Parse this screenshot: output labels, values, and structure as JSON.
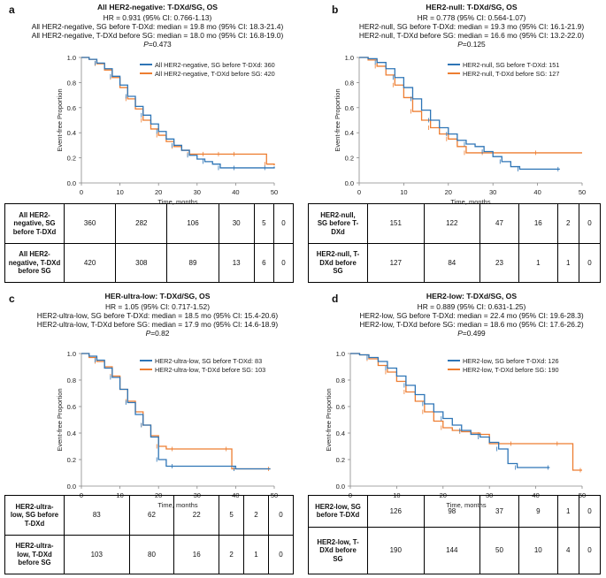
{
  "chart_data": [
    {
      "panel_label": "a",
      "type": "line",
      "title": "All HER2-negative: T-DXd/SG, OS",
      "stats": [
        "HR = 0.931 (95% CI: 0.766-1.13)",
        "All HER2-negative, SG before T-DXd: median = 19.8 mo (95% CI: 18.3-21.4)",
        "All HER2-negative, T-DXd before SG: median = 18.0 mo (95% CI: 16.8-19.0)"
      ],
      "p_label": "P",
      "p_value": "=0.473",
      "xlabel": "Time, months",
      "ylabel": "Event-free Proportion",
      "xlim": [
        0,
        50
      ],
      "ylim": [
        0,
        1
      ],
      "xticks": [
        "0",
        "10",
        "20",
        "30",
        "40",
        "50"
      ],
      "yticks": [
        "0.0",
        "0.2",
        "0.4",
        "0.6",
        "0.8",
        "1.0"
      ],
      "legend_position": "top-right",
      "series": [
        {
          "name": "All HER2-negative, SG before T-DXd: 360",
          "color": "#2E75B6",
          "x": [
            0,
            2,
            4,
            6,
            8,
            10,
            12,
            14,
            16,
            18,
            20,
            22,
            24,
            26,
            28,
            30,
            32,
            34,
            36,
            38,
            40,
            44,
            48,
            50
          ],
          "y": [
            1.0,
            0.985,
            0.955,
            0.91,
            0.85,
            0.78,
            0.69,
            0.61,
            0.54,
            0.47,
            0.41,
            0.35,
            0.3,
            0.26,
            0.22,
            0.19,
            0.17,
            0.15,
            0.12,
            0.12,
            0.12,
            0.12,
            0.12,
            0.13
          ]
        },
        {
          "name": "All HER2-negative, T-DXd before SG: 420",
          "color": "#ED7D31",
          "x": [
            0,
            2,
            4,
            6,
            8,
            10,
            12,
            14,
            16,
            18,
            20,
            22,
            24,
            26,
            28,
            30,
            32,
            34,
            36,
            38,
            40,
            44,
            48,
            50
          ],
          "y": [
            1.0,
            0.985,
            0.95,
            0.9,
            0.84,
            0.76,
            0.67,
            0.59,
            0.5,
            0.43,
            0.38,
            0.33,
            0.29,
            0.26,
            0.23,
            0.23,
            0.23,
            0.23,
            0.23,
            0.23,
            0.23,
            0.23,
            0.15,
            0.14
          ]
        }
      ],
      "risk_table": {
        "rows": [
          {
            "label_lines": [
              "All HER2-",
              "negative, SG",
              "before  T-DXd"
            ],
            "values": [
              "360",
              "282",
              "106",
              "30",
              "5",
              "0"
            ]
          },
          {
            "label_lines": [
              "All HER2-",
              "negative, T-DXd",
              "before SG"
            ],
            "values": [
              "420",
              "308",
              "89",
              "13",
              "6",
              "0"
            ]
          }
        ]
      }
    },
    {
      "panel_label": "b",
      "type": "line",
      "title": "HER2-null: T-DXd/SG, OS",
      "stats": [
        "HR = 0.778 (95% CI: 0.564-1.07)",
        "HER2-null, SG before T-DXd: median = 19.3 mo (95% CI: 16.1-21.9)",
        "HER2-null, T-DXd before SG: median = 16.6 mo (95% CI: 13.2-22.0)"
      ],
      "p_label": "P",
      "p_value": "=0.125",
      "xlabel": "Time, months",
      "ylabel": "Event-free Proportion",
      "xlim": [
        0,
        50
      ],
      "ylim": [
        0,
        1
      ],
      "xticks": [
        "0",
        "10",
        "20",
        "30",
        "40",
        "50"
      ],
      "yticks": [
        "0.0",
        "0.2",
        "0.4",
        "0.6",
        "0.8",
        "1.0"
      ],
      "legend_position": "top-right",
      "series": [
        {
          "name": "HER2-null, SG before T-DXd: 151",
          "color": "#2E75B6",
          "x": [
            0,
            2,
            4,
            6,
            8,
            10,
            12,
            14,
            16,
            18,
            20,
            22,
            24,
            26,
            28,
            30,
            32,
            34,
            36,
            40,
            45
          ],
          "y": [
            1.0,
            0.99,
            0.96,
            0.91,
            0.84,
            0.76,
            0.67,
            0.58,
            0.5,
            0.44,
            0.39,
            0.34,
            0.31,
            0.29,
            0.25,
            0.21,
            0.17,
            0.13,
            0.11,
            0.11,
            0.11
          ]
        },
        {
          "name": "HER2-null, T-DXd before SG: 127",
          "color": "#ED7D31",
          "x": [
            0,
            2,
            4,
            6,
            8,
            10,
            12,
            14,
            16,
            18,
            20,
            22,
            24,
            26,
            28,
            30,
            40,
            50
          ],
          "y": [
            1.0,
            0.98,
            0.93,
            0.86,
            0.78,
            0.68,
            0.57,
            0.5,
            0.44,
            0.39,
            0.35,
            0.29,
            0.24,
            0.24,
            0.24,
            0.24,
            0.24,
            0.24
          ]
        }
      ],
      "risk_table": {
        "rows": [
          {
            "label_lines": [
              "HER2-null,",
              "SG before  T-",
              "DXd"
            ],
            "values": [
              "151",
              "122",
              "47",
              "16",
              "2",
              "0"
            ]
          },
          {
            "label_lines": [
              "HER2-null, T-",
              "DXd before",
              "SG"
            ],
            "values": [
              "127",
              "84",
              "23",
              "1",
              "1",
              "0"
            ]
          }
        ]
      }
    },
    {
      "panel_label": "c",
      "type": "line",
      "title": "HER-ultra-low: T-DXd/SG, OS",
      "stats": [
        "HR = 1.05 (95% CI: 0.717-1.52)",
        "HER2-ultra-low, SG before T-DXd: median = 18.5 mo (95% CI: 15.4-20.6)",
        "HER2-ultra-low, T-DXd before SG: median = 17.9 mo (95% CI: 14.6-18.9)"
      ],
      "p_label": "P",
      "p_value": "=0.82",
      "xlabel": "Time, months",
      "ylabel": "Event-free Proportion",
      "xlim": [
        0,
        50
      ],
      "ylim": [
        0,
        1
      ],
      "xticks": [
        "0",
        "10",
        "20",
        "30",
        "40",
        "50"
      ],
      "yticks": [
        "0.0",
        "0.2",
        "0.4",
        "0.6",
        "0.8",
        "1.0"
      ],
      "legend_position": "top-right",
      "series": [
        {
          "name": "HER2-ultra-low, SG before T-DXd: 83",
          "color": "#2E75B6",
          "x": [
            0,
            2,
            4,
            6,
            8,
            10,
            12,
            14,
            16,
            18,
            20,
            22,
            24,
            30,
            40,
            49
          ],
          "y": [
            1.0,
            0.98,
            0.95,
            0.89,
            0.82,
            0.73,
            0.63,
            0.54,
            0.46,
            0.37,
            0.2,
            0.15,
            0.15,
            0.15,
            0.13,
            0.13
          ]
        },
        {
          "name": "HER2-ultra-low, T-DXd before SG: 103",
          "color": "#ED7D31",
          "x": [
            0,
            2,
            4,
            6,
            8,
            10,
            12,
            14,
            16,
            18,
            20,
            22,
            24,
            30,
            38,
            39,
            49
          ],
          "y": [
            1.0,
            0.97,
            0.94,
            0.9,
            0.83,
            0.73,
            0.64,
            0.56,
            0.46,
            0.38,
            0.3,
            0.28,
            0.28,
            0.28,
            0.28,
            0.13,
            0.13
          ]
        }
      ],
      "risk_table": {
        "rows": [
          {
            "label_lines": [
              "HER2-ultra-",
              "low, SG before",
              "T-DXd"
            ],
            "values": [
              "83",
              "62",
              "22",
              "5",
              "2",
              "0"
            ]
          },
          {
            "label_lines": [
              "HER2-ultra-",
              "low, T-DXd",
              "before SG"
            ],
            "values": [
              "103",
              "80",
              "16",
              "2",
              "1",
              "0"
            ]
          }
        ]
      }
    },
    {
      "panel_label": "d",
      "type": "line",
      "title": "HER2-low: T-DXd/SG, OS",
      "stats": [
        "HR = 0.889 (95% CI: 0.631-1.25)",
        "HER2-low, SG before T-DXd: median = 22.4 mo (95% CI: 19.6-28.3)",
        "HER2-low, T-DXd before SG: median = 18.6 mo (95% CI: 17.6-26.2)"
      ],
      "p_label": "P",
      "p_value": "=0.499",
      "xlabel": "Time, months",
      "ylabel": "Event-free Proportion",
      "xlim": [
        0,
        50
      ],
      "ylim": [
        0,
        1
      ],
      "xticks": [
        "0",
        "10",
        "20",
        "30",
        "40",
        "50"
      ],
      "yticks": [
        "0.0",
        "0.2",
        "0.4",
        "0.6",
        "0.8",
        "1.0"
      ],
      "legend_position": "top-right",
      "series": [
        {
          "name": "HER2-low, SG before T-DXd: 126",
          "color": "#2E75B6",
          "x": [
            0,
            2,
            4,
            6,
            8,
            10,
            12,
            14,
            16,
            18,
            20,
            22,
            24,
            26,
            28,
            30,
            32,
            34,
            36,
            38,
            43
          ],
          "y": [
            1.0,
            0.99,
            0.97,
            0.94,
            0.89,
            0.83,
            0.76,
            0.69,
            0.62,
            0.56,
            0.51,
            0.46,
            0.42,
            0.39,
            0.37,
            0.33,
            0.28,
            0.17,
            0.14,
            0.14,
            0.14
          ]
        },
        {
          "name": "HER2-low, T-DXd before SG: 190",
          "color": "#ED7D31",
          "x": [
            0,
            2,
            4,
            6,
            8,
            10,
            12,
            14,
            16,
            18,
            20,
            22,
            24,
            26,
            28,
            30,
            35,
            40,
            45,
            48,
            50
          ],
          "y": [
            1.0,
            0.99,
            0.96,
            0.91,
            0.86,
            0.79,
            0.71,
            0.64,
            0.56,
            0.49,
            0.44,
            0.42,
            0.41,
            0.4,
            0.39,
            0.32,
            0.32,
            0.32,
            0.32,
            0.12,
            0.12
          ]
        }
      ],
      "risk_table": {
        "rows": [
          {
            "label_lines": [
              "HER2-low, SG",
              "before  T-DXd"
            ],
            "values": [
              "126",
              "98",
              "37",
              "9",
              "1",
              "0"
            ]
          },
          {
            "label_lines": [
              "HER2-low, T-",
              "DXd before",
              "SG"
            ],
            "values": [
              "190",
              "144",
              "50",
              "10",
              "4",
              "0"
            ]
          }
        ]
      }
    }
  ]
}
